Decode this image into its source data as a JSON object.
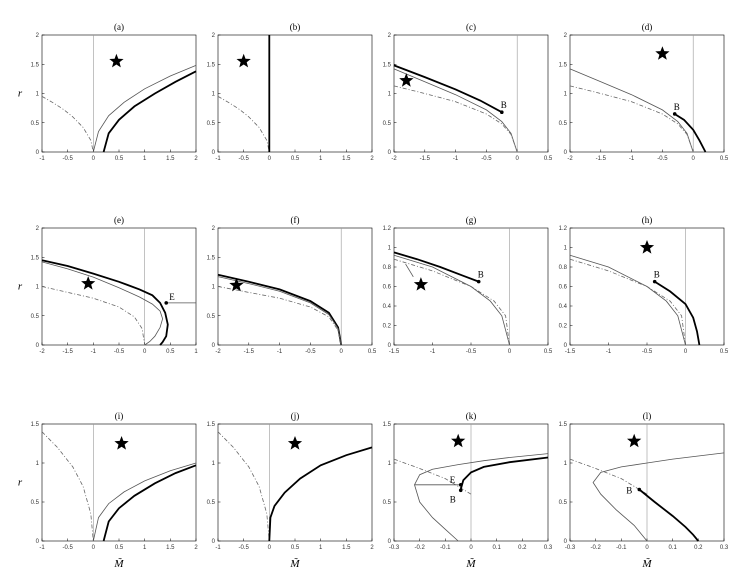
{
  "chart_data": [
    {
      "id": "a",
      "title": "(a)",
      "type": "line",
      "xlim": [
        -1,
        2
      ],
      "ylim": [
        0,
        2
      ],
      "xticks": [
        "-1",
        "-0.5",
        "0",
        "0.5",
        "1",
        "1.5",
        "2"
      ],
      "yticks": [
        "0",
        "0.5",
        "1",
        "1.5",
        "2"
      ],
      "ylabel": "r",
      "xlabel": "",
      "series": [
        {
          "style": "dashdot",
          "x": [
            -1,
            -0.8,
            -0.6,
            -0.4,
            -0.2,
            -0.05,
            0
          ],
          "y": [
            0.95,
            0.85,
            0.74,
            0.6,
            0.42,
            0.2,
            0
          ]
        },
        {
          "style": "thin",
          "x": [
            0,
            0.1,
            0.3,
            0.6,
            1,
            1.5,
            2
          ],
          "y": [
            0,
            0.35,
            0.62,
            0.85,
            1.08,
            1.3,
            1.48
          ]
        },
        {
          "style": "thick",
          "x": [
            0.2,
            0.3,
            0.5,
            0.8,
            1.2,
            1.6,
            2
          ],
          "y": [
            0,
            0.32,
            0.55,
            0.78,
            1.0,
            1.2,
            1.38
          ]
        }
      ],
      "markers": [
        {
          "symbol": "star",
          "x": 0.45,
          "y": 1.55
        }
      ]
    },
    {
      "id": "b",
      "title": "(b)",
      "type": "line",
      "xlim": [
        -1,
        2
      ],
      "ylim": [
        0,
        2
      ],
      "xticks": [
        "-1",
        "-0.5",
        "0",
        "0.5",
        "1",
        "1.5",
        "2"
      ],
      "yticks": [
        "0",
        "0.5",
        "1",
        "1.5",
        "2"
      ],
      "ylabel": "",
      "xlabel": "",
      "series": [
        {
          "style": "dashdot",
          "x": [
            -1,
            -0.8,
            -0.6,
            -0.4,
            -0.2,
            -0.05,
            0
          ],
          "y": [
            0.95,
            0.85,
            0.74,
            0.6,
            0.42,
            0.2,
            0
          ]
        },
        {
          "style": "thick",
          "x": [
            0,
            0
          ],
          "y": [
            0,
            2
          ]
        }
      ],
      "markers": [
        {
          "symbol": "star",
          "x": -0.5,
          "y": 1.55
        }
      ]
    },
    {
      "id": "c",
      "title": "(c)",
      "type": "line",
      "xlim": [
        -2,
        0.5
      ],
      "ylim": [
        0,
        2
      ],
      "xticks": [
        "-2",
        "-1.5",
        "-1",
        "-0.5",
        "0",
        "0.5"
      ],
      "yticks": [
        "0",
        "0.5",
        "1",
        "1.5",
        "2"
      ],
      "ylabel": "",
      "xlabel": "",
      "series": [
        {
          "style": "thick",
          "x": [
            -2,
            -1.5,
            -1,
            -0.6,
            -0.25
          ],
          "y": [
            1.48,
            1.28,
            1.07,
            0.88,
            0.68
          ]
        },
        {
          "style": "thin",
          "x": [
            -2,
            -1.5,
            -1,
            -0.5,
            -0.25,
            -0.1,
            0
          ],
          "y": [
            1.42,
            1.2,
            0.98,
            0.72,
            0.52,
            0.32,
            0
          ]
        },
        {
          "style": "dashdot",
          "x": [
            -2,
            -1.5,
            -1,
            -0.5,
            -0.25,
            -0.1,
            0
          ],
          "y": [
            1.13,
            1.0,
            0.86,
            0.65,
            0.48,
            0.3,
            0
          ]
        }
      ],
      "markers": [
        {
          "symbol": "star",
          "x": -1.8,
          "y": 1.22
        },
        {
          "symbol": "dot",
          "x": -0.25,
          "y": 0.68,
          "label": "B"
        }
      ]
    },
    {
      "id": "d",
      "title": "(d)",
      "type": "line",
      "xlim": [
        -2,
        0.5
      ],
      "ylim": [
        0,
        2
      ],
      "xticks": [
        "-2",
        "-1.5",
        "-1",
        "-0.5",
        "0",
        "0.5"
      ],
      "yticks": [
        "0",
        "0.5",
        "1",
        "1.5",
        "2"
      ],
      "ylabel": "",
      "xlabel": "",
      "series": [
        {
          "style": "thin",
          "x": [
            -2,
            -1.5,
            -1,
            -0.5,
            -0.25,
            -0.1,
            0
          ],
          "y": [
            1.42,
            1.2,
            0.98,
            0.72,
            0.52,
            0.32,
            0
          ]
        },
        {
          "style": "dashdot",
          "x": [
            -2,
            -1.5,
            -1,
            -0.5,
            -0.25,
            -0.1,
            0
          ],
          "y": [
            1.13,
            1.0,
            0.86,
            0.65,
            0.48,
            0.3,
            0
          ]
        },
        {
          "style": "thick",
          "x": [
            -0.3,
            -0.15,
            0,
            0.1,
            0.2
          ],
          "y": [
            0.65,
            0.55,
            0.38,
            0.2,
            0
          ]
        }
      ],
      "markers": [
        {
          "symbol": "star",
          "x": -0.5,
          "y": 1.68
        },
        {
          "symbol": "dot",
          "x": -0.3,
          "y": 0.65,
          "label": "B"
        }
      ]
    },
    {
      "id": "e",
      "title": "(e)",
      "type": "line",
      "xlim": [
        -2,
        1
      ],
      "ylim": [
        0,
        2
      ],
      "xticks": [
        "-2",
        "-1.5",
        "-1",
        "-0.5",
        "0",
        "0.5",
        "1"
      ],
      "yticks": [
        "0",
        "0.5",
        "1",
        "1.5",
        "2"
      ],
      "ylabel": "r",
      "xlabel": "",
      "series": [
        {
          "style": "thick",
          "x": [
            -2,
            -1.5,
            -1,
            -0.5,
            -0.1,
            0.15,
            0.3,
            0.4,
            0.45,
            0.42,
            0.35,
            0.3
          ],
          "y": [
            1.45,
            1.35,
            1.22,
            1.08,
            0.95,
            0.85,
            0.72,
            0.55,
            0.35,
            0.15,
            0.05,
            0
          ]
        },
        {
          "style": "thin",
          "x": [
            -2,
            -1.5,
            -1,
            -0.5,
            -0.1,
            0.15,
            0.3,
            0.35,
            0.3,
            0.2,
            0.1,
            0
          ],
          "y": [
            1.42,
            1.3,
            1.16,
            0.98,
            0.82,
            0.7,
            0.58,
            0.45,
            0.3,
            0.15,
            0.06,
            0
          ]
        },
        {
          "style": "dashdot",
          "x": [
            -2,
            -1.5,
            -1,
            -0.5,
            -0.2,
            -0.05,
            0
          ],
          "y": [
            1.0,
            0.9,
            0.8,
            0.65,
            0.48,
            0.28,
            0
          ]
        },
        {
          "style": "thin",
          "x": [
            0.42,
            1
          ],
          "y": [
            0.72,
            0.72
          ]
        }
      ],
      "markers": [
        {
          "symbol": "star",
          "x": -1.1,
          "y": 1.05
        },
        {
          "symbol": "dot",
          "x": 0.42,
          "y": 0.72,
          "label": "E"
        }
      ]
    },
    {
      "id": "f",
      "title": "(f)",
      "type": "line",
      "xlim": [
        -2,
        0.5
      ],
      "ylim": [
        0,
        2
      ],
      "xticks": [
        "-2",
        "-1.5",
        "-1",
        "-0.5",
        "0",
        "0.5"
      ],
      "yticks": [
        "0",
        "0.5",
        "1",
        "1.5",
        "2"
      ],
      "ylabel": "",
      "xlabel": "",
      "series": [
        {
          "style": "thick",
          "x": [
            -2,
            -1.5,
            -1,
            -0.5,
            -0.2,
            -0.05,
            0
          ],
          "y": [
            1.2,
            1.08,
            0.95,
            0.75,
            0.55,
            0.3,
            0
          ]
        },
        {
          "style": "thin",
          "x": [
            -2,
            -1.5,
            -1,
            -0.5,
            -0.2,
            -0.05,
            0
          ],
          "y": [
            1.17,
            1.05,
            0.92,
            0.72,
            0.52,
            0.28,
            0
          ]
        },
        {
          "style": "dashdot",
          "x": [
            -2,
            -1.5,
            -1,
            -0.5,
            -0.2,
            -0.05,
            0
          ],
          "y": [
            1.0,
            0.9,
            0.8,
            0.65,
            0.48,
            0.25,
            0
          ]
        }
      ],
      "markers": [
        {
          "symbol": "star",
          "x": -1.7,
          "y": 1.02
        }
      ]
    },
    {
      "id": "g",
      "title": "(g)",
      "type": "line",
      "xlim": [
        -1.5,
        0.5
      ],
      "ylim": [
        0,
        1.2
      ],
      "xticks": [
        "-1.5",
        "-1",
        "-0.5",
        "0",
        "0.5"
      ],
      "yticks": [
        "0",
        "0.2",
        "0.4",
        "0.6",
        "0.8",
        "1",
        "1.2"
      ],
      "ylabel": "",
      "xlabel": "",
      "series": [
        {
          "style": "thick",
          "x": [
            -1.5,
            -1.2,
            -0.9,
            -0.6,
            -0.4
          ],
          "y": [
            0.95,
            0.88,
            0.8,
            0.71,
            0.65
          ]
        },
        {
          "style": "thin",
          "x": [
            -1.5,
            -1,
            -0.5,
            -0.25,
            -0.1,
            0
          ],
          "y": [
            0.92,
            0.8,
            0.6,
            0.45,
            0.3,
            0
          ]
        },
        {
          "style": "dashdot",
          "x": [
            -1.5,
            -1,
            -0.5,
            -0.2,
            -0.05,
            0
          ],
          "y": [
            0.88,
            0.76,
            0.6,
            0.45,
            0.3,
            0
          ]
        },
        {
          "style": "thin",
          "x": [
            -1.35,
            -1.25
          ],
          "y": [
            0.83,
            0.7
          ]
        }
      ],
      "markers": [
        {
          "symbol": "star",
          "x": -1.15,
          "y": 0.62
        },
        {
          "symbol": "dot",
          "x": -0.4,
          "y": 0.65,
          "label": "B"
        }
      ]
    },
    {
      "id": "h",
      "title": "(h)",
      "type": "line",
      "xlim": [
        -1.5,
        0.5
      ],
      "ylim": [
        0,
        1.2
      ],
      "xticks": [
        "-1.5",
        "-1",
        "-0.5",
        "0",
        "0.5"
      ],
      "yticks": [
        "0",
        "0.2",
        "0.4",
        "0.6",
        "0.8",
        "1",
        "1.2"
      ],
      "ylabel": "",
      "xlabel": "",
      "series": [
        {
          "style": "thin",
          "x": [
            -1.5,
            -1,
            -0.5,
            -0.25,
            -0.1,
            0
          ],
          "y": [
            0.92,
            0.8,
            0.6,
            0.45,
            0.3,
            0
          ]
        },
        {
          "style": "dashdot",
          "x": [
            -1.5,
            -1,
            -0.5,
            -0.2,
            -0.05,
            0
          ],
          "y": [
            0.88,
            0.76,
            0.6,
            0.45,
            0.3,
            0
          ]
        },
        {
          "style": "thick",
          "x": [
            -0.4,
            -0.2,
            0,
            0.1,
            0.15,
            0.18
          ],
          "y": [
            0.65,
            0.55,
            0.42,
            0.28,
            0.14,
            0
          ]
        }
      ],
      "markers": [
        {
          "symbol": "star",
          "x": -0.5,
          "y": 1.0
        },
        {
          "symbol": "dot",
          "x": -0.4,
          "y": 0.65,
          "label": "B"
        }
      ]
    },
    {
      "id": "i",
      "title": "(i)",
      "type": "line",
      "xlim": [
        -1,
        2
      ],
      "ylim": [
        0,
        1.5
      ],
      "xticks": [
        "-1",
        "-0.5",
        "0",
        "0.5",
        "1",
        "1.5",
        "2"
      ],
      "yticks": [
        "0",
        "0.5",
        "1",
        "1.5"
      ],
      "ylabel": "r",
      "xlabel": "M̃",
      "series": [
        {
          "style": "dashdot",
          "x": [
            -1,
            -0.7,
            -0.4,
            -0.2,
            -0.05,
            0
          ],
          "y": [
            1.4,
            1.2,
            0.95,
            0.7,
            0.35,
            0
          ]
        },
        {
          "style": "thin",
          "x": [
            0,
            0.1,
            0.3,
            0.6,
            1,
            1.5,
            2
          ],
          "y": [
            0,
            0.3,
            0.48,
            0.63,
            0.77,
            0.9,
            1.0
          ]
        },
        {
          "style": "thick",
          "x": [
            0.2,
            0.3,
            0.5,
            0.8,
            1.2,
            1.6,
            2
          ],
          "y": [
            0,
            0.25,
            0.42,
            0.58,
            0.74,
            0.87,
            0.97
          ]
        }
      ],
      "markers": [
        {
          "symbol": "star",
          "x": 0.55,
          "y": 1.25
        }
      ]
    },
    {
      "id": "j",
      "title": "(j)",
      "type": "line",
      "xlim": [
        -1,
        2
      ],
      "ylim": [
        0,
        1.5
      ],
      "xticks": [
        "-1",
        "-0.5",
        "0",
        "0.5",
        "1",
        "1.5",
        "2"
      ],
      "yticks": [
        "0",
        "0.5",
        "1",
        "1.5"
      ],
      "ylabel": "",
      "xlabel": "M̃",
      "series": [
        {
          "style": "dashdot",
          "x": [
            -1,
            -0.7,
            -0.4,
            -0.2,
            -0.05,
            0
          ],
          "y": [
            1.4,
            1.2,
            0.95,
            0.7,
            0.35,
            0
          ]
        },
        {
          "style": "thick",
          "x": [
            0,
            0.02,
            0.1,
            0.3,
            0.6,
            1,
            1.5,
            2
          ],
          "y": [
            0,
            0.3,
            0.45,
            0.62,
            0.8,
            0.97,
            1.1,
            1.2
          ]
        }
      ],
      "markers": [
        {
          "symbol": "star",
          "x": 0.5,
          "y": 1.25
        }
      ]
    },
    {
      "id": "k",
      "title": "(k)",
      "type": "line",
      "xlim": [
        -0.3,
        0.3
      ],
      "ylim": [
        0,
        1.5
      ],
      "xticks": [
        "-0.3",
        "-0.2",
        "-0.1",
        "0",
        "0.1",
        "0.2",
        "0.3"
      ],
      "yticks": [
        "0",
        "0.5",
        "1",
        "1.5"
      ],
      "ylabel": "",
      "xlabel": "M̃",
      "series": [
        {
          "style": "thin",
          "x": [
            -0.05,
            -0.1,
            -0.15,
            -0.2,
            -0.22,
            -0.2,
            -0.15,
            -0.05,
            0.05,
            0.15,
            0.3
          ],
          "y": [
            0.0,
            0.15,
            0.3,
            0.5,
            0.72,
            0.85,
            0.92,
            0.98,
            1.03,
            1.07,
            1.12
          ]
        },
        {
          "style": "dashdot",
          "x": [
            -0.3,
            -0.2,
            -0.1,
            -0.05,
            0
          ],
          "y": [
            1.05,
            0.93,
            0.8,
            0.7,
            0.6
          ]
        },
        {
          "style": "thin",
          "x": [
            -0.22,
            -0.04
          ],
          "y": [
            0.72,
            0.72
          ]
        },
        {
          "style": "thick",
          "x": [
            -0.04,
            -0.03,
            0.0,
            0.05,
            0.15,
            0.3
          ],
          "y": [
            0.66,
            0.78,
            0.88,
            0.95,
            1.01,
            1.07
          ]
        }
      ],
      "markers": [
        {
          "symbol": "star",
          "x": -0.05,
          "y": 1.28
        },
        {
          "symbol": "dot",
          "x": -0.04,
          "y": 0.72,
          "label": "E"
        },
        {
          "symbol": "dot",
          "x": -0.04,
          "y": 0.65,
          "label": "B"
        }
      ]
    },
    {
      "id": "l",
      "title": "(l)",
      "type": "line",
      "xlim": [
        -0.3,
        0.3
      ],
      "ylim": [
        0,
        1.5
      ],
      "xticks": [
        "-0.3",
        "-0.2",
        "-0.1",
        "0",
        "0.1",
        "0.2",
        "0.3"
      ],
      "yticks": [
        "0",
        "0.5",
        "1",
        "1.5"
      ],
      "ylabel": "",
      "xlabel": "M̃",
      "series": [
        {
          "style": "thin",
          "x": [
            0.0,
            -0.05,
            -0.12,
            -0.18,
            -0.21,
            -0.18,
            -0.1,
            0.0,
            0.1,
            0.2,
            0.3
          ],
          "y": [
            0.0,
            0.2,
            0.4,
            0.6,
            0.75,
            0.88,
            0.95,
            1.0,
            1.05,
            1.09,
            1.13
          ]
        },
        {
          "style": "dashdot",
          "x": [
            -0.3,
            -0.2,
            -0.1,
            -0.05,
            0
          ],
          "y": [
            1.05,
            0.93,
            0.8,
            0.7,
            0.6
          ]
        },
        {
          "style": "thick",
          "x": [
            -0.03,
            0.03,
            0.1,
            0.15,
            0.18,
            0.2
          ],
          "y": [
            0.66,
            0.5,
            0.32,
            0.18,
            0.08,
            0
          ]
        }
      ],
      "markers": [
        {
          "symbol": "star",
          "x": -0.05,
          "y": 1.28
        },
        {
          "symbol": "dot",
          "x": -0.03,
          "y": 0.66,
          "label": "B"
        }
      ]
    }
  ]
}
